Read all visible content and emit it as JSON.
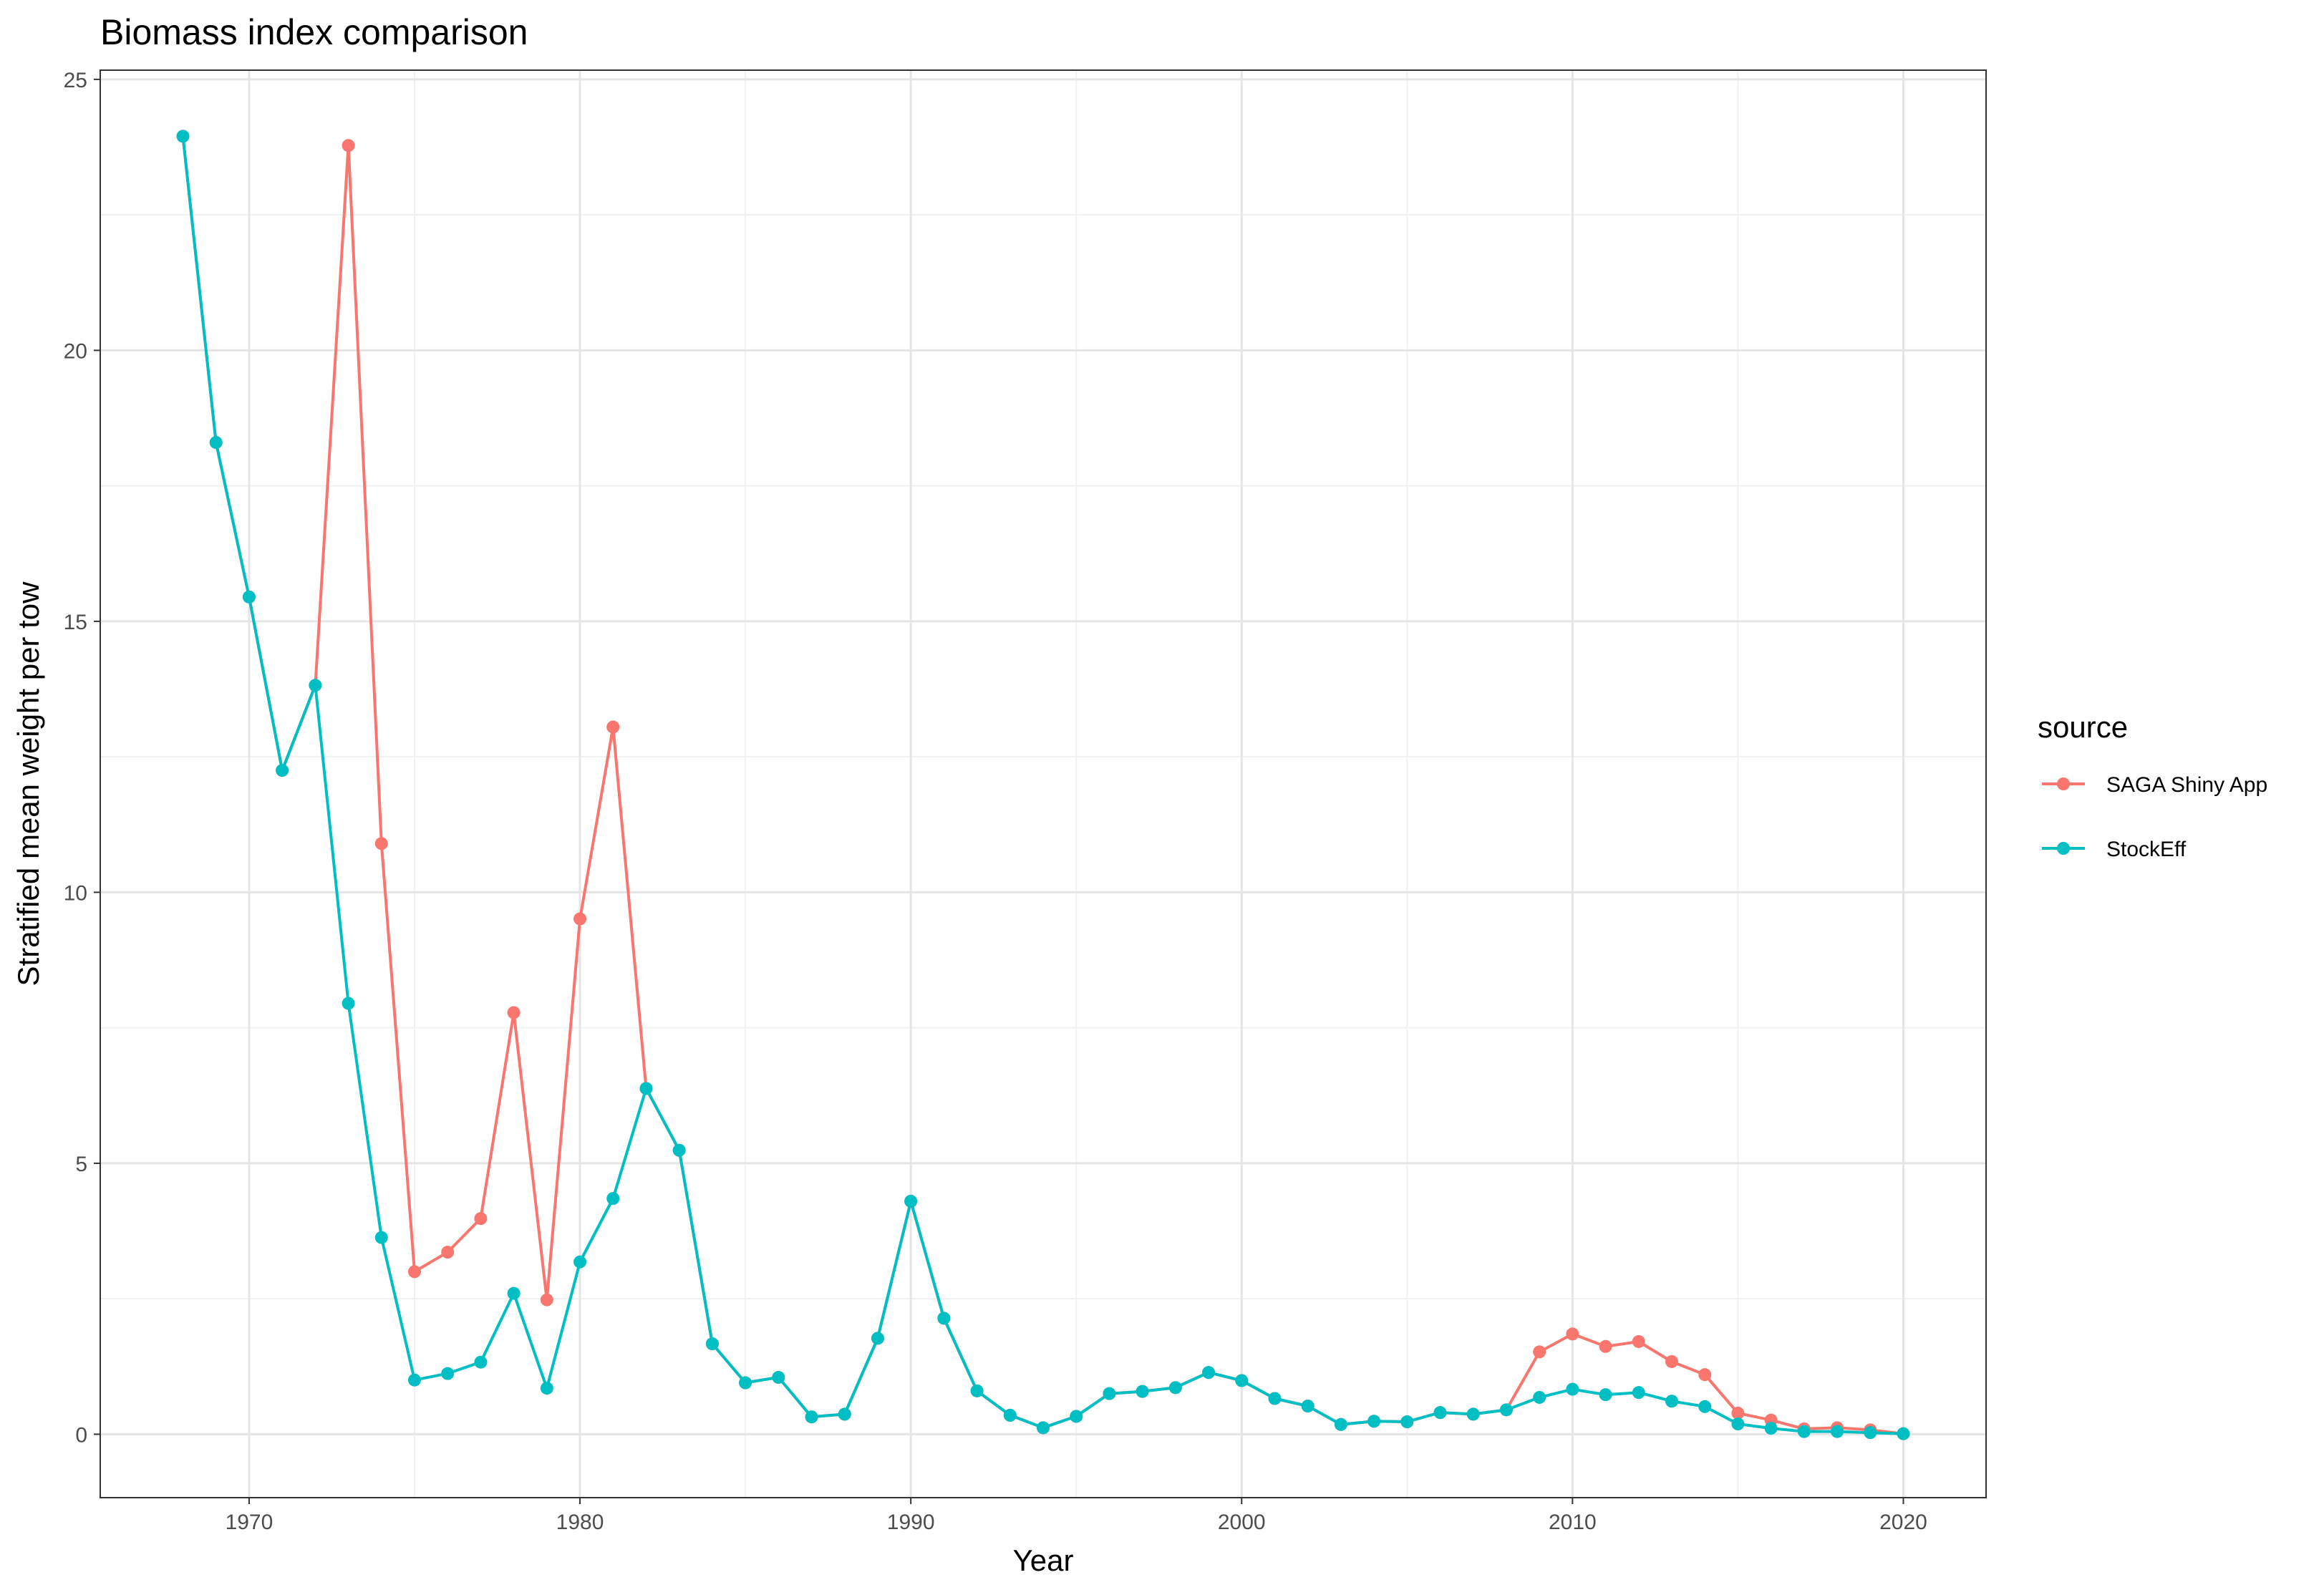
{
  "chart_data": {
    "type": "line",
    "title": "Biomass index comparison",
    "xlabel": "Year",
    "ylabel": "Stratified mean weight per tow",
    "xlim": [
      1965.5,
      2022.5
    ],
    "ylim": [
      -1.17,
      25.17
    ],
    "x_ticks": [
      1970,
      1980,
      1990,
      2000,
      2010,
      2020
    ],
    "y_ticks": [
      0,
      5,
      10,
      15,
      20,
      25
    ],
    "grid": true,
    "legend": {
      "title": "source",
      "placement": "right"
    },
    "series": [
      {
        "name": "SAGA Shiny App",
        "color": "#F8766D",
        "x": [
          1968,
          1969,
          1970,
          1971,
          1972,
          1973,
          1974,
          1975,
          1976,
          1977,
          1978,
          1979,
          1980,
          1981,
          1982,
          1983,
          1984,
          1985,
          1986,
          1987,
          1988,
          1989,
          1990,
          1991,
          1992,
          1993,
          1994,
          1995,
          1996,
          1997,
          1998,
          1999,
          2000,
          2001,
          2002,
          2003,
          2004,
          2005,
          2006,
          2007,
          2008,
          2009,
          2010,
          2011,
          2012,
          2013,
          2014,
          2015,
          2016,
          2017,
          2018,
          2019,
          2020
        ],
        "values": [
          23.95,
          18.3,
          15.45,
          12.25,
          13.82,
          23.78,
          10.9,
          3.0,
          3.36,
          3.98,
          7.78,
          2.48,
          9.51,
          13.05,
          6.38,
          5.24,
          1.67,
          0.95,
          1.05,
          0.32,
          0.37,
          1.77,
          4.3,
          2.14,
          0.8,
          0.35,
          0.12,
          0.33,
          0.75,
          0.79,
          0.86,
          1.14,
          0.99,
          0.66,
          0.52,
          0.18,
          0.24,
          0.23,
          0.4,
          0.37,
          0.45,
          1.52,
          1.85,
          1.62,
          1.71,
          1.34,
          1.1,
          0.39,
          0.26,
          0.1,
          0.12,
          0.08,
          0.01
        ]
      },
      {
        "name": "StockEff",
        "color": "#00BFC4",
        "x": [
          1968,
          1969,
          1970,
          1971,
          1972,
          1973,
          1974,
          1975,
          1976,
          1977,
          1978,
          1979,
          1980,
          1981,
          1982,
          1983,
          1984,
          1985,
          1986,
          1987,
          1988,
          1989,
          1990,
          1991,
          1992,
          1993,
          1994,
          1995,
          1996,
          1997,
          1998,
          1999,
          2000,
          2001,
          2002,
          2003,
          2004,
          2005,
          2006,
          2007,
          2008,
          2009,
          2010,
          2011,
          2012,
          2013,
          2014,
          2015,
          2016,
          2017,
          2018,
          2019,
          2020
        ],
        "values": [
          23.95,
          18.3,
          15.45,
          12.25,
          13.82,
          7.95,
          3.63,
          1.0,
          1.12,
          1.33,
          2.6,
          0.85,
          3.18,
          4.35,
          6.38,
          5.24,
          1.67,
          0.95,
          1.05,
          0.32,
          0.37,
          1.77,
          4.3,
          2.14,
          0.8,
          0.35,
          0.12,
          0.33,
          0.75,
          0.79,
          0.86,
          1.14,
          0.99,
          0.66,
          0.52,
          0.18,
          0.24,
          0.23,
          0.4,
          0.37,
          0.45,
          0.68,
          0.83,
          0.73,
          0.77,
          0.61,
          0.51,
          0.19,
          0.11,
          0.05,
          0.05,
          0.03,
          0.01
        ]
      }
    ]
  }
}
